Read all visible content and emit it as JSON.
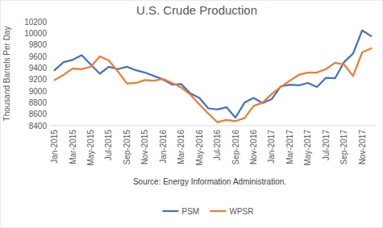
{
  "chart_data": {
    "type": "line",
    "title": "U.S. Crude Production",
    "y_label": "Thousand Barrels Per Day",
    "annotations": [
      "Source: Energy Information Administration."
    ],
    "categories": [
      "Jan-2015",
      null,
      "Mar-2015",
      null,
      "May-2015",
      null,
      "Jul-2015",
      null,
      "Sep-2015",
      null,
      "Nov-2015",
      null,
      "Jan-2016",
      null,
      "Mar-2016",
      null,
      "May-2016",
      null,
      "Jul-2016",
      null,
      "Sep-2016",
      null,
      "Nov-2016",
      null,
      "Jan-2017",
      null,
      "Mar-2017",
      null,
      "May-2017",
      null,
      "Jul-2017",
      null,
      "Sep-2017",
      null,
      "Nov-2017",
      null
    ],
    "series": [
      {
        "name": "PSM",
        "color": "#4472c4",
        "values": [
          9360,
          9500,
          9540,
          9620,
          9460,
          9300,
          9420,
          9380,
          9420,
          9360,
          9320,
          9260,
          9200,
          9110,
          9120,
          8960,
          8880,
          8700,
          8680,
          8720,
          8540,
          8800,
          8880,
          8790,
          8860,
          9080,
          9110,
          9100,
          9140,
          9070,
          9230,
          9220,
          9500,
          9650,
          10050,
          9950
        ]
      },
      {
        "name": "WPSR",
        "color": "#ed7d31",
        "values": [
          9190,
          9280,
          9390,
          9380,
          9420,
          9600,
          9530,
          9340,
          9130,
          9140,
          9190,
          9180,
          9210,
          9140,
          9060,
          8940,
          8770,
          8610,
          8460,
          8500,
          8480,
          8530,
          8740,
          8800,
          8950,
          9070,
          9180,
          9280,
          9320,
          9320,
          9380,
          9490,
          9460,
          9260,
          9670,
          9740
        ]
      }
    ],
    "ylim": [
      8400,
      10200
    ],
    "yticks": [
      8400,
      8600,
      8800,
      9000,
      9200,
      9400,
      9600,
      9800,
      10000,
      10200
    ],
    "grid": false,
    "legend": "bottom"
  }
}
